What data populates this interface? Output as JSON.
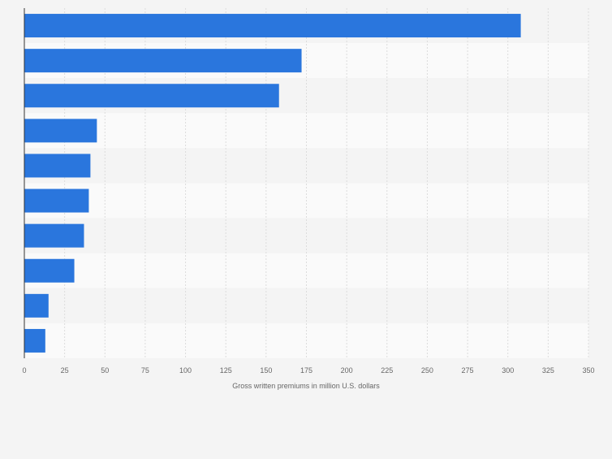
{
  "chart_data": {
    "type": "bar",
    "orientation": "horizontal",
    "categories": [
      "",
      "",
      "",
      "",
      "",
      "",
      "",
      "",
      "",
      ""
    ],
    "values": [
      308,
      172,
      158,
      45,
      41,
      40,
      37,
      31,
      15,
      13
    ],
    "title": "",
    "xlabel": "Gross written premiums in million U.S. dollars",
    "ylabel": "",
    "xlim": [
      0,
      350
    ],
    "xticks": [
      0,
      25,
      50,
      75,
      100,
      125,
      150,
      175,
      200,
      225,
      250,
      275,
      300,
      325,
      350
    ],
    "grid": true,
    "colors": {
      "bar": "#2a76dd",
      "band_light": "#fafafa",
      "band_dark": "#f4f4f4",
      "grid": "#dcdcdc",
      "axis": "#333333",
      "tick_text": "#666666"
    }
  }
}
